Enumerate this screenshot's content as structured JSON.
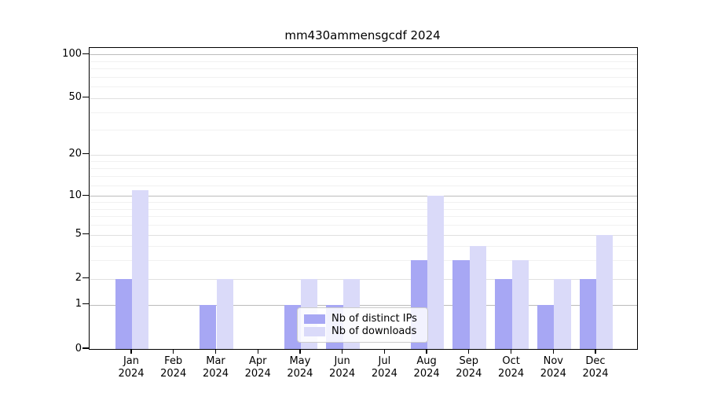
{
  "chart_data": {
    "type": "bar",
    "title": "mm430ammensgcdf 2024",
    "categories": [
      {
        "month": "Jan",
        "year": "2024"
      },
      {
        "month": "Feb",
        "year": "2024"
      },
      {
        "month": "Mar",
        "year": "2024"
      },
      {
        "month": "Apr",
        "year": "2024"
      },
      {
        "month": "May",
        "year": "2024"
      },
      {
        "month": "Jun",
        "year": "2024"
      },
      {
        "month": "Jul",
        "year": "2024"
      },
      {
        "month": "Aug",
        "year": "2024"
      },
      {
        "month": "Sep",
        "year": "2024"
      },
      {
        "month": "Oct",
        "year": "2024"
      },
      {
        "month": "Nov",
        "year": "2024"
      },
      {
        "month": "Dec",
        "year": "2024"
      }
    ],
    "series": [
      {
        "name": "Nb of distinct IPs",
        "color": "#a7a7f4",
        "values": [
          2,
          0,
          1,
          0,
          1,
          1,
          0,
          3,
          3,
          2,
          1,
          2
        ]
      },
      {
        "name": "Nb of downloads",
        "color": "#dadaf9",
        "values": [
          11,
          0,
          2,
          0,
          2,
          2,
          0,
          10,
          4,
          3,
          2,
          5
        ]
      }
    ],
    "y_axis": {
      "scale": "log1p",
      "ticks": [
        0,
        1,
        2,
        5,
        10,
        20,
        50,
        100
      ],
      "major_gridlines": [
        1,
        10,
        100
      ],
      "minor_gridlines": [
        3,
        4,
        6,
        7,
        8,
        9,
        12,
        14,
        16,
        18,
        30,
        40,
        60,
        70,
        80,
        90
      ],
      "ylim": [
        0,
        110
      ]
    },
    "legend": {
      "position": "inside lower center"
    },
    "grid": true
  }
}
